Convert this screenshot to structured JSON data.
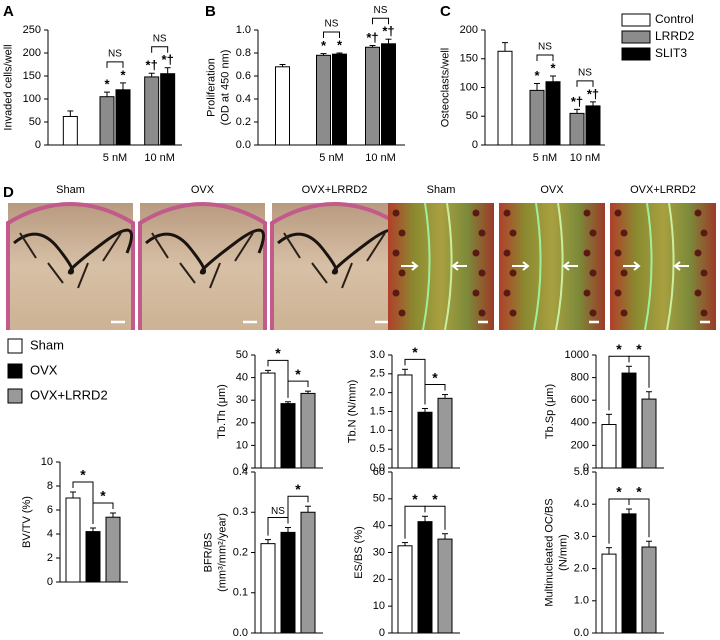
{
  "chart_data": [
    {
      "type": "bar",
      "panel": "A",
      "ylabel": [
        "Invaded cells/well"
      ],
      "categories": [
        null,
        "5 nM",
        "10 nM"
      ],
      "series": [
        {
          "color": "#ffffff",
          "values": [
            62,
            null,
            null
          ],
          "errors": [
            12,
            null,
            null
          ],
          "marks": [
            null,
            null,
            null
          ]
        },
        {
          "color": "#8c8c8c",
          "values": [
            null,
            105,
            148
          ],
          "errors": [
            null,
            10,
            8
          ],
          "marks": [
            null,
            "*",
            "*†"
          ]
        },
        {
          "color": "#000000",
          "values": [
            null,
            120,
            155
          ],
          "errors": [
            null,
            15,
            13
          ],
          "marks": [
            null,
            "*",
            "*†"
          ]
        }
      ],
      "brackets": [
        null,
        "NS",
        "NS"
      ],
      "ylim": [
        0,
        250
      ],
      "yticks": [
        0,
        50,
        100,
        150,
        200,
        250
      ]
    },
    {
      "type": "bar",
      "panel": "B",
      "ylabel": [
        "Proliferation",
        "(OD at 450 nm)"
      ],
      "categories": [
        null,
        "5 nM",
        "10 nM"
      ],
      "series": [
        {
          "color": "#ffffff",
          "values": [
            0.68,
            null,
            null
          ],
          "errors": [
            0.02,
            null,
            null
          ],
          "marks": [
            null,
            null,
            null
          ]
        },
        {
          "color": "#8c8c8c",
          "values": [
            null,
            0.78,
            0.85
          ],
          "errors": [
            null,
            0.015,
            0.015
          ],
          "marks": [
            null,
            "*",
            "*†"
          ]
        },
        {
          "color": "#000000",
          "values": [
            null,
            0.79,
            0.88
          ],
          "errors": [
            null,
            0.01,
            0.04
          ],
          "marks": [
            null,
            "*",
            "*†"
          ]
        }
      ],
      "brackets": [
        null,
        "NS",
        "NS"
      ],
      "ylim": [
        0,
        1
      ],
      "yticks": [
        {
          "value": 0,
          "label": "0.0"
        },
        0.2,
        0.4,
        0.6,
        0.8,
        {
          "value": 1,
          "label": "1.0"
        }
      ]
    },
    {
      "type": "bar",
      "panel": "C",
      "ylabel": [
        "Osteoclasts/well"
      ],
      "categories": [
        null,
        "5 nM",
        "10 nM"
      ],
      "legend": true,
      "series": [
        {
          "name": "Control",
          "color": "#ffffff",
          "values": [
            163,
            null,
            null
          ],
          "errors": [
            15,
            null,
            null
          ],
          "marks": [
            null,
            null,
            null
          ]
        },
        {
          "name": "LRRD2",
          "color": "#8c8c8c",
          "values": [
            null,
            95,
            55
          ],
          "errors": [
            null,
            12,
            7
          ],
          "marks": [
            null,
            "*",
            "*†"
          ]
        },
        {
          "name": "SLIT3",
          "color": "#000000",
          "values": [
            null,
            110,
            68
          ],
          "errors": [
            null,
            10,
            7
          ],
          "marks": [
            null,
            "*",
            "*†"
          ]
        }
      ],
      "brackets": [
        null,
        "NS",
        "NS"
      ],
      "ylim": [
        0,
        200
      ],
      "yticks": [
        0,
        50,
        100,
        150,
        200
      ]
    },
    {
      "type": "groupbar",
      "ylabel": [
        "BV/TV (%)"
      ],
      "values": [
        7.0,
        4.2,
        5.4
      ],
      "errors": [
        0.5,
        0.3,
        0.35
      ],
      "brackets": [
        "*",
        "*"
      ],
      "ylim": [
        0,
        10
      ],
      "yticks": [
        0,
        2,
        4,
        6,
        8,
        10
      ]
    },
    {
      "type": "groupbar",
      "ylabel": [
        "Tb.Th (μm)"
      ],
      "values": [
        42,
        28.5,
        33
      ],
      "errors": [
        1.2,
        0.8,
        1
      ],
      "brackets": [
        "*",
        "*"
      ],
      "ylim": [
        0,
        50
      ],
      "yticks": [
        0,
        10,
        20,
        30,
        40,
        50
      ]
    },
    {
      "type": "groupbar",
      "ylabel": [
        "Tb.N (N/mm)"
      ],
      "values": [
        2.47,
        1.48,
        1.85
      ],
      "errors": [
        0.15,
        0.1,
        0.1
      ],
      "brackets": [
        "*",
        "*"
      ],
      "ylim": [
        0,
        3
      ],
      "yticks": [
        {
          "value": 0,
          "label": "0.0"
        },
        0.5,
        {
          "value": 1,
          "label": "1.0"
        },
        1.5,
        {
          "value": 2,
          "label": "2.0"
        },
        2.5,
        {
          "value": 3,
          "label": "3.0"
        }
      ]
    },
    {
      "type": "groupbar",
      "ylabel": [
        "Tb.Sp (μm)"
      ],
      "values": [
        385,
        840,
        610
      ],
      "errors": [
        90,
        60,
        65
      ],
      "brackets": [
        "*",
        "*"
      ],
      "ylim": [
        0,
        1000
      ],
      "yticks": [
        0,
        200,
        400,
        600,
        800,
        1000
      ]
    },
    {
      "type": "groupbar",
      "ylabel": [
        "BFR/BS",
        "(mm³/mm²/year)"
      ],
      "values": [
        0.222,
        0.25,
        0.3
      ],
      "errors": [
        0.01,
        0.012,
        0.015
      ],
      "brackets": [
        "NS",
        "*"
      ],
      "ylim": [
        0,
        0.4
      ],
      "yticks": [
        {
          "value": 0,
          "label": "0.0"
        },
        0.1,
        0.2,
        0.3,
        0.4
      ]
    },
    {
      "type": "groupbar",
      "ylabel": [
        "ES/BS (%)"
      ],
      "values": [
        32.5,
        41.5,
        35
      ],
      "errors": [
        1.2,
        2,
        2
      ],
      "brackets": [
        "*",
        "*"
      ],
      "ylim": [
        0,
        60
      ],
      "yticks": [
        0,
        10,
        20,
        30,
        40,
        50,
        60
      ]
    },
    {
      "type": "groupbar",
      "ylabel": [
        "Multinucleated OC/BS",
        "(N/mm)"
      ],
      "values": [
        2.45,
        3.7,
        2.67
      ],
      "errors": [
        0.2,
        0.15,
        0.18
      ],
      "brackets": [
        "*",
        "*"
      ],
      "ylim": [
        0,
        5
      ],
      "yticks": [
        {
          "value": 0,
          "label": "0.0"
        },
        {
          "value": 1,
          "label": "1.0"
        },
        {
          "value": 2,
          "label": "2.0"
        },
        {
          "value": 3,
          "label": "3.0"
        },
        {
          "value": 4,
          "label": "4.0"
        },
        {
          "value": 5,
          "label": "5.0"
        }
      ]
    }
  ],
  "group_legend": [
    {
      "name": "Sham",
      "color": "#ffffff"
    },
    {
      "name": "OVX",
      "color": "#000000"
    },
    {
      "name": "OVX+LRRD2",
      "color": "#999999"
    }
  ],
  "images": {
    "panel": "D",
    "left": [
      "Sham",
      "OVX",
      "OVX+LRRD2"
    ],
    "right": [
      "Sham",
      "OVX",
      "OVX+LRRD2"
    ]
  }
}
